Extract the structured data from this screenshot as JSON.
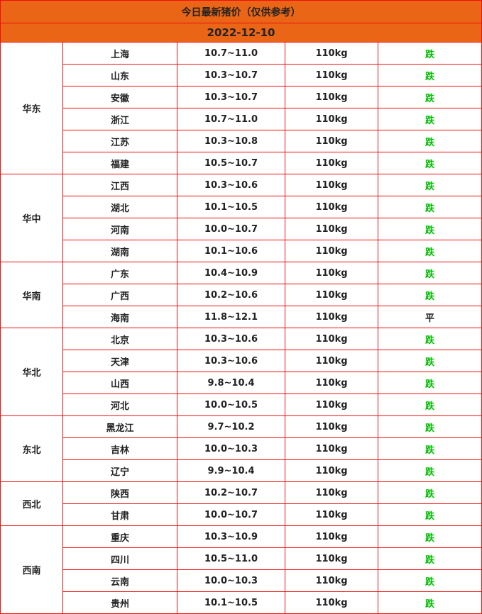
{
  "title": "今日最新猪价（仅供参考）",
  "date": "2022-12-10",
  "colors": {
    "header_bg": "#ea6515",
    "border": "#ee1111",
    "down": "#00c000"
  },
  "regions": [
    {
      "name": "华东",
      "rows": [
        {
          "province": "上海",
          "price": "10.7~11.0",
          "weight": "110kg",
          "trend": "跌"
        },
        {
          "province": "山东",
          "price": "10.3~10.7",
          "weight": "110kg",
          "trend": "跌"
        },
        {
          "province": "安徽",
          "price": "10.3~10.7",
          "weight": "110kg",
          "trend": "跌"
        },
        {
          "province": "浙江",
          "price": "10.7~11.0",
          "weight": "110kg",
          "trend": "跌"
        },
        {
          "province": "江苏",
          "price": "10.3~10.8",
          "weight": "110kg",
          "trend": "跌"
        },
        {
          "province": "福建",
          "price": "10.5~10.7",
          "weight": "110kg",
          "trend": "跌"
        }
      ]
    },
    {
      "name": "华中",
      "rows": [
        {
          "province": "江西",
          "price": "10.3~10.6",
          "weight": "110kg",
          "trend": "跌"
        },
        {
          "province": "湖北",
          "price": "10.1~10.5",
          "weight": "110kg",
          "trend": "跌"
        },
        {
          "province": "河南",
          "price": "10.0~10.7",
          "weight": "110kg",
          "trend": "跌"
        },
        {
          "province": "湖南",
          "price": "10.1~10.6",
          "weight": "110kg",
          "trend": "跌"
        }
      ]
    },
    {
      "name": "华南",
      "rows": [
        {
          "province": "广东",
          "price": "10.4~10.9",
          "weight": "110kg",
          "trend": "跌"
        },
        {
          "province": "广西",
          "price": "10.2~10.6",
          "weight": "110kg",
          "trend": "跌"
        },
        {
          "province": "海南",
          "price": "11.8~12.1",
          "weight": "110kg",
          "trend": "平"
        }
      ]
    },
    {
      "name": "华北",
      "rows": [
        {
          "province": "北京",
          "price": "10.3~10.6",
          "weight": "110kg",
          "trend": "跌"
        },
        {
          "province": "天津",
          "price": "10.3~10.6",
          "weight": "110kg",
          "trend": "跌"
        },
        {
          "province": "山西",
          "price": "9.8~10.4",
          "weight": "110kg",
          "trend": "跌"
        },
        {
          "province": "河北",
          "price": "10.0~10.5",
          "weight": "110kg",
          "trend": "跌"
        }
      ]
    },
    {
      "name": "东北",
      "rows": [
        {
          "province": "黑龙江",
          "price": "9.7~10.2",
          "weight": "110kg",
          "trend": "跌"
        },
        {
          "province": "吉林",
          "price": "10.0~10.3",
          "weight": "110kg",
          "trend": "跌"
        },
        {
          "province": "辽宁",
          "price": "9.9~10.4",
          "weight": "110kg",
          "trend": "跌"
        }
      ]
    },
    {
      "name": "西北",
      "rows": [
        {
          "province": "陕西",
          "price": "10.2~10.7",
          "weight": "110kg",
          "trend": "跌"
        },
        {
          "province": "甘肃",
          "price": "10.0~10.7",
          "weight": "110kg",
          "trend": "跌"
        }
      ]
    },
    {
      "name": "西南",
      "rows": [
        {
          "province": "重庆",
          "price": "10.3~10.9",
          "weight": "110kg",
          "trend": "跌"
        },
        {
          "province": "四川",
          "price": "10.5~11.0",
          "weight": "110kg",
          "trend": "跌"
        },
        {
          "province": "云南",
          "price": "10.0~10.3",
          "weight": "110kg",
          "trend": "跌"
        },
        {
          "province": "贵州",
          "price": "10.1~10.5",
          "weight": "110kg",
          "trend": "跌"
        }
      ]
    }
  ]
}
